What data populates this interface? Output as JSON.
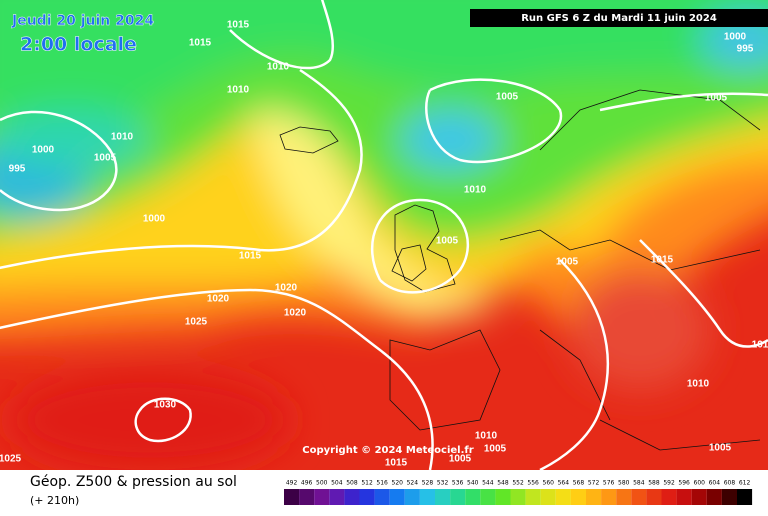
{
  "header": {
    "date": "Jeudi 20 juin 2024",
    "time": "2:00 locale",
    "run": "Run GFS 6 Z du Mardi 11 juin 2024"
  },
  "map": {
    "copyright": "Copyright © 2024 Meteociel.fr",
    "isobar_labels": [
      "1015",
      "1015",
      "1010",
      "1010",
      "1005",
      "1005",
      "1000",
      "995",
      "1010",
      "1000",
      "1005",
      "995",
      "1000",
      "1010",
      "1005",
      "1005",
      "1015",
      "1015",
      "1020",
      "1020",
      "1020",
      "1025",
      "1030",
      "1010",
      "1010",
      "1005",
      "1005",
      "1015",
      "1005",
      "1025",
      "101"
    ]
  },
  "legend": {
    "title": "Géop. Z500 & pression au sol",
    "lead": "(+ 210h)",
    "scale": [
      492,
      496,
      500,
      504,
      508,
      512,
      516,
      520,
      524,
      528,
      532,
      536,
      540,
      544,
      548,
      552,
      556,
      560,
      564,
      568,
      572,
      576,
      580,
      584,
      588,
      592,
      596,
      600,
      604,
      608,
      612
    ]
  }
}
